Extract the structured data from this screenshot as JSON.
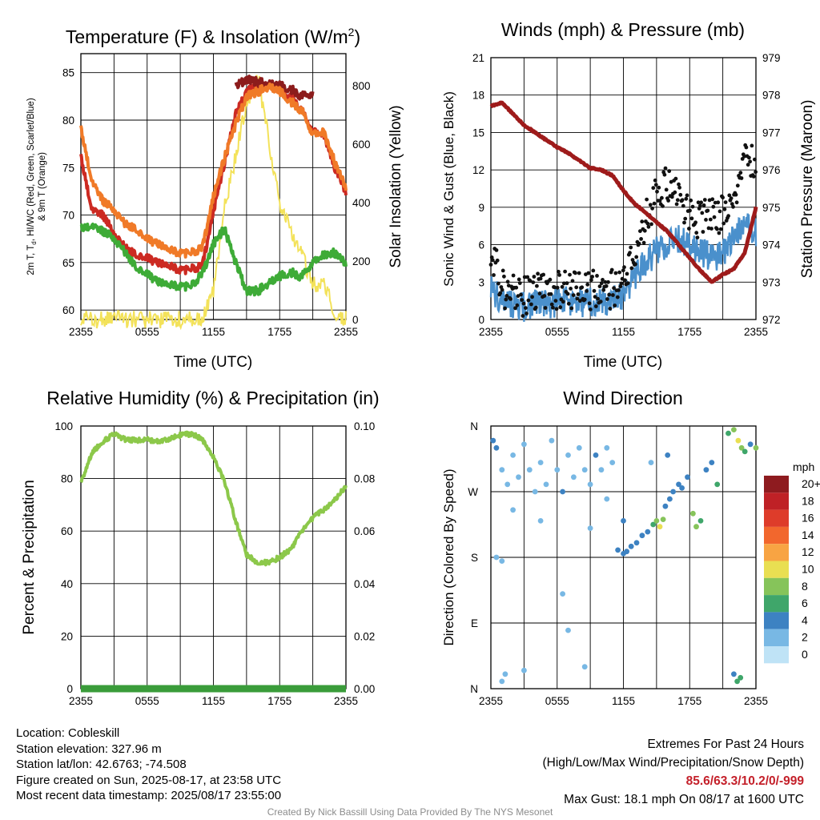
{
  "chart_data": [
    {
      "type": "line",
      "title": "Temperature (F) & Insolation (W/m",
      "title_sup": "2",
      "title_end": ")",
      "xlabel": "Time (UTC)",
      "ylabel_left": [
        "2m T, T",
        "d",
        ", HI/WC (Red, Green, Scarlet/Blue)",
        "& 9m T (Orange)"
      ],
      "ylabel_right": "Solar Insolation (Yellow)",
      "x_ticks": [
        "2355",
        "0555",
        "1155",
        "1755",
        "2355"
      ],
      "ylim_left": [
        59,
        87
      ],
      "yticks_left": [
        60,
        65,
        70,
        75,
        80,
        85
      ],
      "ylim_right": [
        0,
        910
      ],
      "yticks_right": [
        0,
        200,
        400,
        600,
        800
      ],
      "grid": true,
      "hours": [
        0,
        1,
        2,
        3,
        4,
        5,
        6,
        7,
        8,
        9,
        10,
        11,
        12,
        13,
        14,
        15,
        16,
        17,
        18,
        19,
        20,
        21,
        22,
        23,
        24
      ],
      "series": [
        {
          "color": "#cc2a22",
          "values": [
            76,
            70.5,
            70,
            68,
            66.5,
            65.8,
            65.5,
            65,
            64.8,
            64.2,
            64.3,
            64.6,
            70.5,
            75.5,
            80.5,
            83,
            83.6,
            83.8,
            83.5,
            82.5,
            81,
            78.8,
            78.5,
            75,
            72.5
          ]
        },
        {
          "color": "#8c1c1c",
          "values": [
            null,
            null,
            null,
            null,
            null,
            null,
            null,
            null,
            null,
            null,
            null,
            null,
            null,
            null,
            83.5,
            84.3,
            84,
            83.8,
            83.6,
            83.3,
            82.5,
            82.8,
            null,
            null,
            null
          ]
        },
        {
          "color": "#f07a28",
          "values": [
            79,
            73.5,
            71.5,
            70.5,
            69,
            68.5,
            67.5,
            67,
            66.5,
            66,
            66,
            66.5,
            72,
            76,
            79.5,
            82.5,
            83,
            83.5,
            83,
            82,
            81,
            78.5,
            78.7,
            75.5,
            73
          ]
        },
        {
          "color": "#3eab37",
          "values": [
            68.5,
            68.8,
            68.3,
            67.5,
            66,
            64.5,
            63.8,
            63,
            62.8,
            62.5,
            62.5,
            63.8,
            67,
            68.5,
            65,
            62,
            62,
            62.8,
            63.5,
            64,
            63.5,
            65,
            65.8,
            66,
            65
          ]
        }
      ],
      "insolation": {
        "color": "#f3e25a",
        "values": [
          0,
          0,
          0,
          0,
          0,
          0,
          0,
          0,
          0,
          0,
          0,
          5,
          100,
          380,
          560,
          740,
          840,
          620,
          400,
          300,
          220,
          120,
          130,
          30,
          0
        ]
      }
    },
    {
      "type": "scatter",
      "title": "Winds (mph) & Pressure (mb)",
      "xlabel": "Time (UTC)",
      "ylabel_left": "Sonic Wind & Gust (Blue, Black)",
      "ylabel_right": "Station Pressure (Maroon)",
      "x_ticks": [
        "2355",
        "0555",
        "1155",
        "1755",
        "2355"
      ],
      "ylim_left": [
        0,
        21
      ],
      "yticks_left": [
        0,
        3,
        6,
        9,
        12,
        15,
        18,
        21
      ],
      "ylim_right": [
        972,
        979
      ],
      "yticks_right": [
        972,
        973,
        974,
        975,
        976,
        977,
        978,
        979
      ],
      "grid": true,
      "hours": [
        0,
        1,
        2,
        3,
        4,
        5,
        6,
        7,
        8,
        9,
        10,
        11,
        12,
        13,
        14,
        15,
        16,
        17,
        18,
        19,
        20,
        21,
        22,
        23,
        24
      ],
      "sustained": {
        "color": "#4a90cc",
        "values": [
          2.5,
          1.5,
          1.2,
          1.0,
          1.3,
          1.2,
          1.4,
          1.5,
          1.3,
          1.4,
          1.5,
          1.5,
          2.0,
          3.5,
          4.5,
          5.5,
          6,
          6.5,
          6,
          5.5,
          5,
          5.2,
          6.5,
          7.5,
          7
        ]
      },
      "gusts": {
        "color": "#111111",
        "values": [
          6,
          2.5,
          2,
          1.8,
          2.2,
          2.1,
          2.3,
          2.4,
          2.2,
          2.3,
          2.4,
          2.4,
          3,
          5.5,
          8,
          10,
          11,
          9.5,
          8.5,
          8,
          8.2,
          8.5,
          10,
          13,
          12.5
        ]
      },
      "pressure": {
        "color": "#9e1b1b",
        "values": [
          977.7,
          977.8,
          977.5,
          977.2,
          977.0,
          976.8,
          976.6,
          976.45,
          976.25,
          976.05,
          976.0,
          975.85,
          975.45,
          975.1,
          974.85,
          974.6,
          974.35,
          974.0,
          973.65,
          973.3,
          973.0,
          973.2,
          973.35,
          973.8,
          975.0
        ]
      }
    },
    {
      "type": "line",
      "title": "Relative Humidity (%) & Precipitation (in)",
      "ylabel_left": "Percent & Precipitation",
      "x_ticks": [
        "2355",
        "0555",
        "1155",
        "1755",
        "2355"
      ],
      "ylim_left": [
        0,
        100
      ],
      "yticks_left": [
        0,
        20,
        40,
        60,
        80,
        100
      ],
      "ylim_right": [
        0,
        0.1
      ],
      "yticks_right": [
        "0.00",
        "0.02",
        "0.04",
        "0.06",
        "0.08",
        "0.10"
      ],
      "grid": true,
      "hours": [
        0,
        1,
        2,
        3,
        4,
        5,
        6,
        7,
        8,
        9,
        10,
        11,
        12,
        13,
        14,
        15,
        16,
        17,
        18,
        19,
        20,
        21,
        22,
        23,
        24
      ],
      "series": [
        {
          "color": "#8cc84a",
          "values": [
            78,
            90,
            94,
            97,
            95,
            94.5,
            95,
            94,
            95,
            96.5,
            97,
            95,
            88,
            79,
            64,
            51,
            48,
            48,
            50,
            53,
            60,
            65,
            68,
            72,
            77
          ]
        },
        {
          "color": "#3a9c3a",
          "values": [
            0,
            0,
            0,
            0,
            0,
            0,
            0,
            0,
            0,
            0,
            0,
            0,
            0,
            0,
            0,
            0,
            0,
            0,
            0,
            0,
            0,
            0,
            0,
            0,
            0
          ]
        }
      ]
    },
    {
      "type": "scatter",
      "title": "Wind Direction",
      "ylabel_left": "Direction (Colored By Speed)",
      "x_ticks": [
        "2355",
        "0555",
        "1155",
        "1755",
        "2355"
      ],
      "yticks_left": [
        "N",
        "E",
        "S",
        "W",
        "N"
      ],
      "ylim_left": [
        0,
        360
      ],
      "grid": true,
      "legend": {
        "title": "mph",
        "placement": "right",
        "labels": [
          "20+",
          "18",
          "16",
          "14",
          "12",
          "10",
          "8",
          "6",
          "4",
          "2",
          "0"
        ],
        "colors": [
          "#8e1b1f",
          "#bf2126",
          "#de3c2a",
          "#f2672d",
          "#f8a443",
          "#e9df52",
          "#86c45a",
          "#3fa66a",
          "#3d82c2",
          "#78b8e4",
          "#bfe3f6"
        ]
      },
      "points_hour_dir_speed": [
        [
          0.2,
          340,
          3
        ],
        [
          0.5,
          330,
          4
        ],
        [
          1.0,
          300,
          2
        ],
        [
          1.5,
          280,
          1
        ],
        [
          2.0,
          320,
          2
        ],
        [
          2.5,
          290,
          1
        ],
        [
          3.0,
          335,
          1
        ],
        [
          3.5,
          300,
          2
        ],
        [
          4.0,
          270,
          1
        ],
        [
          4.5,
          310,
          2
        ],
        [
          5.0,
          280,
          2
        ],
        [
          5.5,
          340,
          1
        ],
        [
          6.0,
          300,
          2
        ],
        [
          6.5,
          270,
          3
        ],
        [
          7.0,
          320,
          1
        ],
        [
          7.5,
          290,
          2
        ],
        [
          8.0,
          330,
          2
        ],
        [
          8.5,
          300,
          1
        ],
        [
          9.0,
          280,
          2
        ],
        [
          9.5,
          320,
          3
        ],
        [
          10.0,
          300,
          1
        ],
        [
          10.5,
          330,
          2
        ],
        [
          11.0,
          310,
          1
        ],
        [
          11.5,
          190,
          3
        ],
        [
          12.0,
          185,
          4
        ],
        [
          12.3,
          188,
          4
        ],
        [
          12.7,
          195,
          4
        ],
        [
          13.2,
          200,
          4
        ],
        [
          13.7,
          210,
          4
        ],
        [
          14.2,
          215,
          4
        ],
        [
          14.7,
          225,
          5
        ],
        [
          15.0,
          230,
          8
        ],
        [
          15.3,
          222,
          9
        ],
        [
          15.6,
          232,
          8
        ],
        [
          15.8,
          250,
          4
        ],
        [
          16.2,
          260,
          4
        ],
        [
          16.5,
          270,
          4
        ],
        [
          17.0,
          280,
          4
        ],
        [
          17.3,
          275,
          3
        ],
        [
          17.8,
          290,
          4
        ],
        [
          18.3,
          240,
          7
        ],
        [
          18.6,
          222,
          7
        ],
        [
          19.0,
          230,
          6
        ],
        [
          19.5,
          300,
          4
        ],
        [
          20.0,
          310,
          4
        ],
        [
          20.5,
          280,
          5
        ],
        [
          21.5,
          350,
          5
        ],
        [
          22.0,
          355,
          7
        ],
        [
          22.4,
          340,
          10
        ],
        [
          22.7,
          330,
          8
        ],
        [
          23.0,
          325,
          6
        ],
        [
          23.5,
          335,
          4
        ],
        [
          24.0,
          330,
          7
        ],
        [
          1.0,
          10,
          2
        ],
        [
          1.3,
          20,
          1
        ],
        [
          7.0,
          80,
          1
        ],
        [
          6.5,
          130,
          1
        ],
        [
          8.5,
          30,
          1
        ],
        [
          3.0,
          25,
          1
        ],
        [
          22.0,
          20,
          4
        ],
        [
          22.3,
          10,
          6
        ],
        [
          22.6,
          15,
          6
        ],
        [
          0.5,
          180,
          1
        ],
        [
          1.0,
          175,
          1
        ],
        [
          12.0,
          230,
          3
        ],
        [
          14.5,
          310,
          2
        ],
        [
          16.0,
          320,
          3
        ],
        [
          10.5,
          260,
          1
        ],
        [
          2.0,
          245,
          1
        ],
        [
          4.5,
          230,
          1
        ],
        [
          9.0,
          220,
          2
        ]
      ]
    }
  ],
  "info": {
    "location": "Location: Cobleskill",
    "elevation": "Station elevation: 327.96 m",
    "latlon": "Station lat/lon: 42.6763; -74.508",
    "created": "Figure created on Sun, 2025-08-17, at 23:58 UTC",
    "recent": "Most recent data timestamp: 2025/08/17 23:55:00"
  },
  "extremes": {
    "title": "Extremes For Past 24 Hours",
    "subtitle": "(High/Low/Max Wind/Precipitation/Snow Depth)",
    "values": "85.6/63.3/10.2/0/-999",
    "max_gust": "Max Gust: 18.1 mph On 08/17 at 1600 UTC"
  },
  "credit": "Created By Nick Bassill Using Data Provided By The NYS Mesonet"
}
